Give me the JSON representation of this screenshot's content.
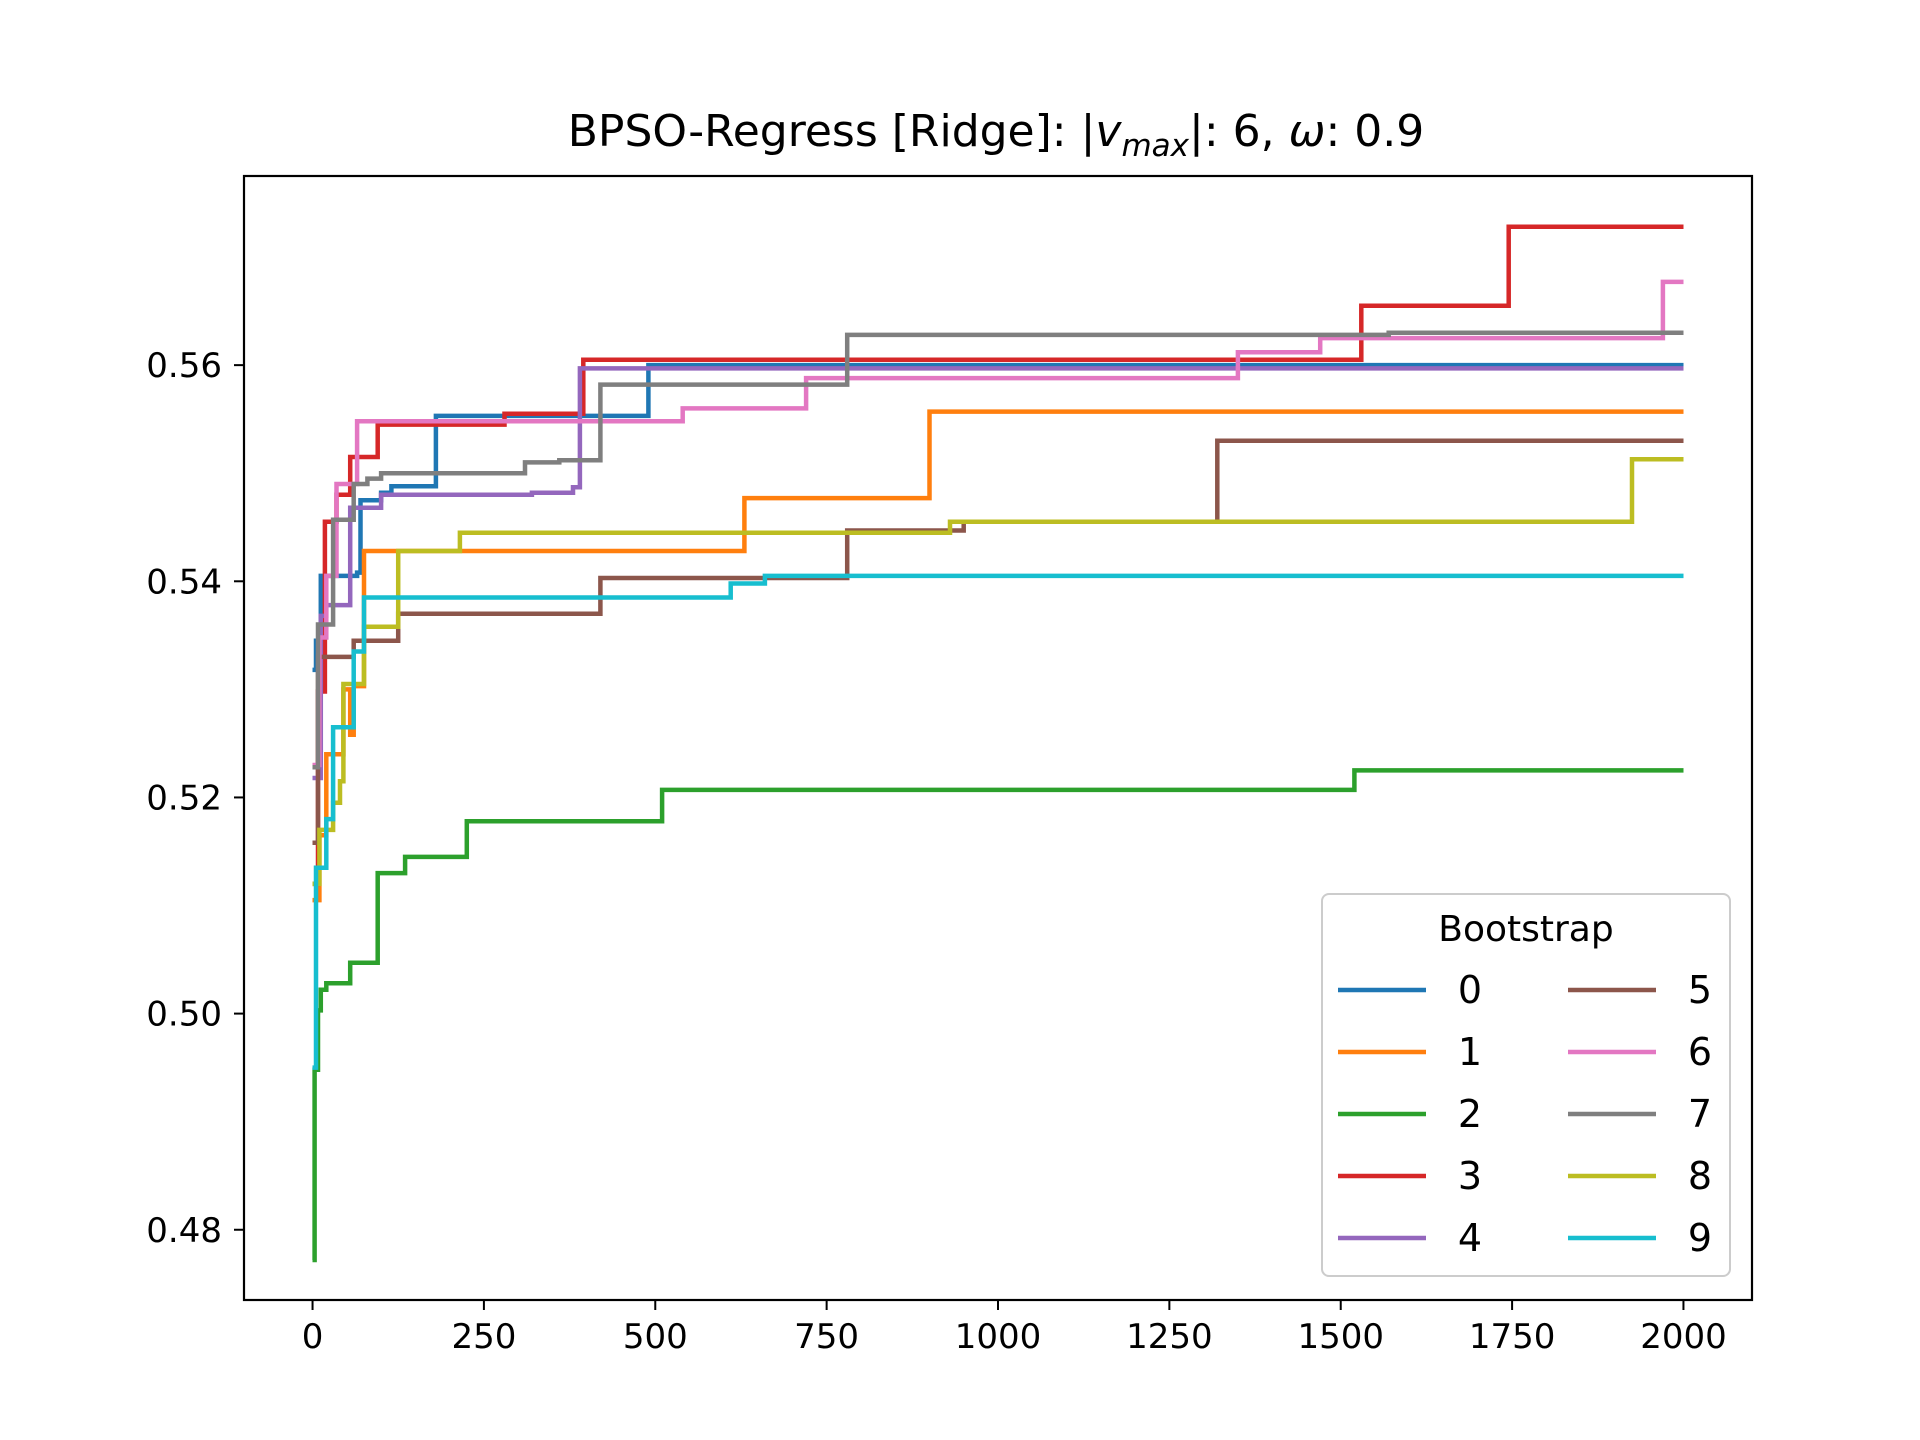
{
  "chart_data": {
    "type": "line",
    "title": "BPSO-Regress [Ridge]: |v_max|: 6, ω: 0.9",
    "title_parts": {
      "prefix": "BPSO-Regress [Ridge]: |",
      "v": "v",
      "sub": "max",
      "middle": "|: 6, ",
      "omega": "ω",
      "suffix": ": 0.9"
    },
    "xlabel": "",
    "ylabel": "",
    "xlim": [
      -100,
      2100
    ],
    "ylim": [
      0.4735,
      0.5775
    ],
    "xticks": [
      0,
      250,
      500,
      750,
      1000,
      1250,
      1500,
      1750,
      2000
    ],
    "xtick_labels": [
      "0",
      "250",
      "500",
      "750",
      "1000",
      "1250",
      "1500",
      "1750",
      "2000"
    ],
    "yticks": [
      0.48,
      0.5,
      0.52,
      0.54,
      0.56
    ],
    "ytick_labels": [
      "0.48",
      "0.50",
      "0.52",
      "0.54",
      "0.56"
    ],
    "grid": false,
    "step": true,
    "legend": {
      "title": "Bootstrap",
      "placement": "lower-right",
      "columns": 2
    },
    "series": [
      {
        "name": "0",
        "color": "#1f77b4",
        "points": [
          [
            0,
            0.5318
          ],
          [
            5,
            0.5345
          ],
          [
            12,
            0.5405
          ],
          [
            65,
            0.5408
          ],
          [
            70,
            0.5475
          ],
          [
            100,
            0.5482
          ],
          [
            115,
            0.5488
          ],
          [
            180,
            0.5553
          ],
          [
            490,
            0.56
          ],
          [
            2000,
            0.56
          ]
        ]
      },
      {
        "name": "1",
        "color": "#ff7f0e",
        "points": [
          [
            0,
            0.5105
          ],
          [
            10,
            0.5165
          ],
          [
            20,
            0.524
          ],
          [
            45,
            0.53
          ],
          [
            55,
            0.5258
          ],
          [
            60,
            0.5303
          ],
          [
            75,
            0.5428
          ],
          [
            630,
            0.5477
          ],
          [
            900,
            0.5557
          ],
          [
            2000,
            0.5557
          ]
        ]
      },
      {
        "name": "2",
        "color": "#2ca02c",
        "points": [
          [
            0,
            0.4772
          ],
          [
            3,
            0.4948
          ],
          [
            8,
            0.5003
          ],
          [
            12,
            0.5022
          ],
          [
            20,
            0.5028
          ],
          [
            55,
            0.5047
          ],
          [
            95,
            0.513
          ],
          [
            135,
            0.5145
          ],
          [
            225,
            0.5178
          ],
          [
            510,
            0.5207
          ],
          [
            1520,
            0.5225
          ],
          [
            2000,
            0.5225
          ]
        ]
      },
      {
        "name": "3",
        "color": "#d62728",
        "points": [
          [
            0,
            0.512
          ],
          [
            8,
            0.5298
          ],
          [
            18,
            0.5455
          ],
          [
            35,
            0.548
          ],
          [
            55,
            0.5515
          ],
          [
            95,
            0.5545
          ],
          [
            280,
            0.5555
          ],
          [
            395,
            0.5605
          ],
          [
            1530,
            0.5655
          ],
          [
            1745,
            0.5728
          ],
          [
            2000,
            0.5728
          ]
        ]
      },
      {
        "name": "4",
        "color": "#9467bd",
        "points": [
          [
            0,
            0.5218
          ],
          [
            12,
            0.5368
          ],
          [
            20,
            0.5378
          ],
          [
            40,
            0.5378
          ],
          [
            55,
            0.5468
          ],
          [
            100,
            0.548
          ],
          [
            320,
            0.5482
          ],
          [
            380,
            0.5487
          ],
          [
            390,
            0.5597
          ],
          [
            2000,
            0.5597
          ]
        ]
      },
      {
        "name": "5",
        "color": "#8c564b",
        "points": [
          [
            0,
            0.5158
          ],
          [
            8,
            0.533
          ],
          [
            50,
            0.533
          ],
          [
            60,
            0.5345
          ],
          [
            125,
            0.537
          ],
          [
            420,
            0.5403
          ],
          [
            780,
            0.5447
          ],
          [
            950,
            0.5455
          ],
          [
            1320,
            0.553
          ],
          [
            2000,
            0.553
          ]
        ]
      },
      {
        "name": "6",
        "color": "#e377c2",
        "points": [
          [
            0,
            0.523
          ],
          [
            10,
            0.5348
          ],
          [
            20,
            0.5405
          ],
          [
            35,
            0.549
          ],
          [
            65,
            0.5548
          ],
          [
            540,
            0.556
          ],
          [
            720,
            0.5588
          ],
          [
            1350,
            0.5612
          ],
          [
            1470,
            0.5625
          ],
          [
            1970,
            0.5677
          ],
          [
            2000,
            0.5677
          ]
        ]
      },
      {
        "name": "7",
        "color": "#7f7f7f",
        "points": [
          [
            0,
            0.5228
          ],
          [
            8,
            0.536
          ],
          [
            30,
            0.5457
          ],
          [
            60,
            0.549
          ],
          [
            80,
            0.5495
          ],
          [
            100,
            0.55
          ],
          [
            310,
            0.551
          ],
          [
            360,
            0.5512
          ],
          [
            420,
            0.5582
          ],
          [
            780,
            0.5628
          ],
          [
            1570,
            0.563
          ],
          [
            2000,
            0.563
          ]
        ]
      },
      {
        "name": "8",
        "color": "#bcbd22",
        "points": [
          [
            0,
            0.512
          ],
          [
            10,
            0.517
          ],
          [
            30,
            0.5195
          ],
          [
            40,
            0.5215
          ],
          [
            45,
            0.5305
          ],
          [
            75,
            0.5358
          ],
          [
            125,
            0.5428
          ],
          [
            215,
            0.5445
          ],
          [
            930,
            0.5455
          ],
          [
            1925,
            0.5513
          ],
          [
            2000,
            0.5513
          ]
        ]
      },
      {
        "name": "9",
        "color": "#17becf",
        "points": [
          [
            0,
            0.495
          ],
          [
            5,
            0.5135
          ],
          [
            20,
            0.518
          ],
          [
            30,
            0.5265
          ],
          [
            60,
            0.5335
          ],
          [
            75,
            0.5385
          ],
          [
            610,
            0.5398
          ],
          [
            660,
            0.5405
          ],
          [
            2000,
            0.5405
          ]
        ]
      }
    ]
  }
}
